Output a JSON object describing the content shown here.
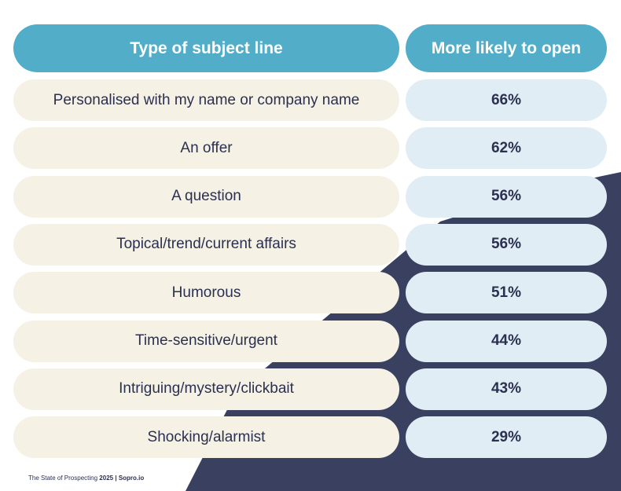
{
  "colors": {
    "header_bg": "#52adc9",
    "left_cell_bg": "#f5f1e5",
    "right_cell_bg": "#e1edf4",
    "text": "#2b3050",
    "header_text": "#ffffff",
    "navy_shape": "#3a4160"
  },
  "header": {
    "col1": "Type of subject line",
    "col2": "More likely to open"
  },
  "footer": {
    "prefix": "The State of Prospecting",
    "year": "2025",
    "separator": "|",
    "brand": "Sopro.io"
  },
  "chart_data": {
    "type": "table",
    "columns": [
      "Type of subject line",
      "More likely to open"
    ],
    "rows": [
      {
        "label": "Personalised with my name or company name",
        "value": "66%"
      },
      {
        "label": "An offer",
        "value": "62%"
      },
      {
        "label": "A question",
        "value": "56%"
      },
      {
        "label": "Topical/trend/current affairs",
        "value": "56%"
      },
      {
        "label": "Humorous",
        "value": "51%"
      },
      {
        "label": "Time-sensitive/urgent",
        "value": "44%"
      },
      {
        "label": "Intriguing/mystery/clickbait",
        "value": "43%"
      },
      {
        "label": "Shocking/alarmist",
        "value": "29%"
      }
    ]
  }
}
